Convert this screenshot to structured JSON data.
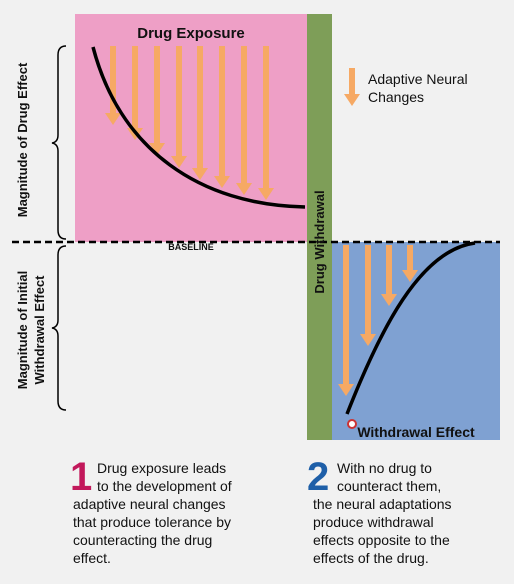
{
  "panel_drug": {
    "title": "Drug Exposure"
  },
  "withdrawal_bar": "Drug Withdrawal",
  "panel_withdrawal": {
    "title": "Withdrawal Effect"
  },
  "baseline": "BASELINE",
  "axis_labels": {
    "top": "Magnitude of Drug Effect",
    "bottom": [
      "Magnitude of Initial",
      "Withdrawal Effect"
    ]
  },
  "legend": [
    "Adaptive Neural",
    "Changes"
  ],
  "notes": [
    {
      "number": "1",
      "lines": [
        "Drug exposure leads",
        "to the development of",
        "adaptive neural changes",
        "that produce tolerance by",
        "counteracting the drug",
        "effect."
      ]
    },
    {
      "number": "2",
      "lines": [
        "With no drug to",
        "counteract them,",
        "the neural adaptations",
        "produce withdrawal",
        "effects opposite to the",
        "effects of the drug."
      ]
    }
  ]
}
